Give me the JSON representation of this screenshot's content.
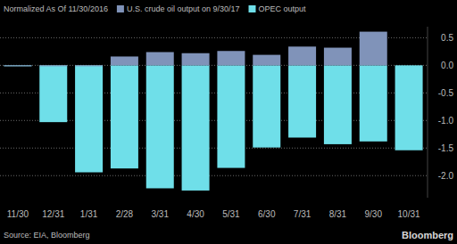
{
  "chart_data": {
    "type": "bar",
    "subtitle": "Normalized As Of 11/30/2016",
    "annotations": [
      "Source: EIA, Bloomberg",
      "Bloomberg"
    ],
    "categories": [
      "11/30",
      "12/31",
      "1/31",
      "2/28",
      "3/31",
      "4/30",
      "5/31",
      "6/30",
      "7/31",
      "8/31",
      "9/30",
      "10/31"
    ],
    "series": [
      {
        "name": "U.S. crude oil output on 9/30/17",
        "color": "#8093b9",
        "values": [
          0,
          0,
          0,
          0.16,
          0.24,
          0.22,
          0.26,
          0.19,
          0.34,
          0.32,
          0.61,
          null
        ]
      },
      {
        "name": "OPEC output",
        "color": "#6fdfe9",
        "values": [
          0,
          -1.03,
          -1.94,
          -1.87,
          -2.23,
          -2.27,
          -1.86,
          -1.49,
          -1.31,
          -1.43,
          -1.38,
          -1.54
        ]
      }
    ],
    "ylim": [
      -2.4,
      0.7
    ],
    "yticks": [
      0.5,
      {
        "value": 0,
        "label": "0.0"
      },
      -0.5,
      {
        "value": -1,
        "label": "-1.0"
      },
      -1.5,
      {
        "value": -2,
        "label": "-2.0"
      }
    ],
    "grid": true,
    "legend": "top"
  }
}
